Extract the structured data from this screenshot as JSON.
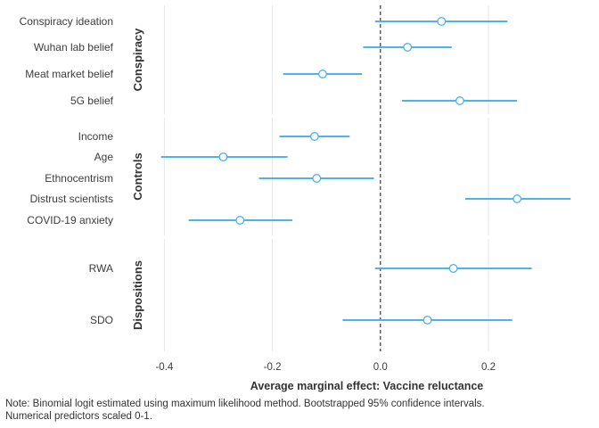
{
  "chart_data": {
    "type": "scatter",
    "subtype": "coefficient-plot",
    "xlabel": "Average marginal effect: Vaccine reluctance",
    "xlim": [
      -0.46,
      0.36
    ],
    "xticks": [
      -0.4,
      -0.2,
      0.0,
      0.2
    ],
    "xtick_labels": [
      "-0.4",
      "-0.2",
      "0.0",
      "0.2"
    ],
    "zero_line": "dashed",
    "grid": "vertical major",
    "point_color": "#4db3ea",
    "panels": [
      {
        "label": "Conspiracy",
        "items": [
          {
            "name": "Conspiracy ideation",
            "estimate": 0.113,
            "lower": -0.01,
            "upper": 0.235
          },
          {
            "name": "Wuhan lab belief",
            "estimate": 0.05,
            "lower": -0.032,
            "upper": 0.132
          },
          {
            "name": "Meat market belief",
            "estimate": -0.107,
            "lower": -0.18,
            "upper": -0.034
          },
          {
            "name": "5G belief",
            "estimate": 0.147,
            "lower": 0.04,
            "upper": 0.253
          }
        ]
      },
      {
        "label": "Controls",
        "items": [
          {
            "name": "Income",
            "estimate": -0.122,
            "lower": -0.187,
            "upper": -0.057
          },
          {
            "name": "Age",
            "estimate": -0.291,
            "lower": -0.406,
            "upper": -0.172
          },
          {
            "name": "Ethnocentrism",
            "estimate": -0.118,
            "lower": -0.225,
            "upper": -0.012
          },
          {
            "name": "Distrust scientists",
            "estimate": 0.253,
            "lower": 0.157,
            "upper": 0.352
          },
          {
            "name": "COVID-19 anxiety",
            "estimate": -0.26,
            "lower": -0.355,
            "upper": -0.163
          }
        ]
      },
      {
        "label": "Dispositions",
        "items": [
          {
            "name": "RWA",
            "estimate": 0.135,
            "lower": -0.01,
            "upper": 0.28
          },
          {
            "name": "SDO",
            "estimate": 0.087,
            "lower": -0.07,
            "upper": 0.244
          }
        ]
      }
    ]
  },
  "note": {
    "line1": "Note: Binomial logit estimated using maximum likelihood method.  Bootstrapped 95% confidence intervals.",
    "line2": "Numerical predictors scaled 0-1."
  }
}
